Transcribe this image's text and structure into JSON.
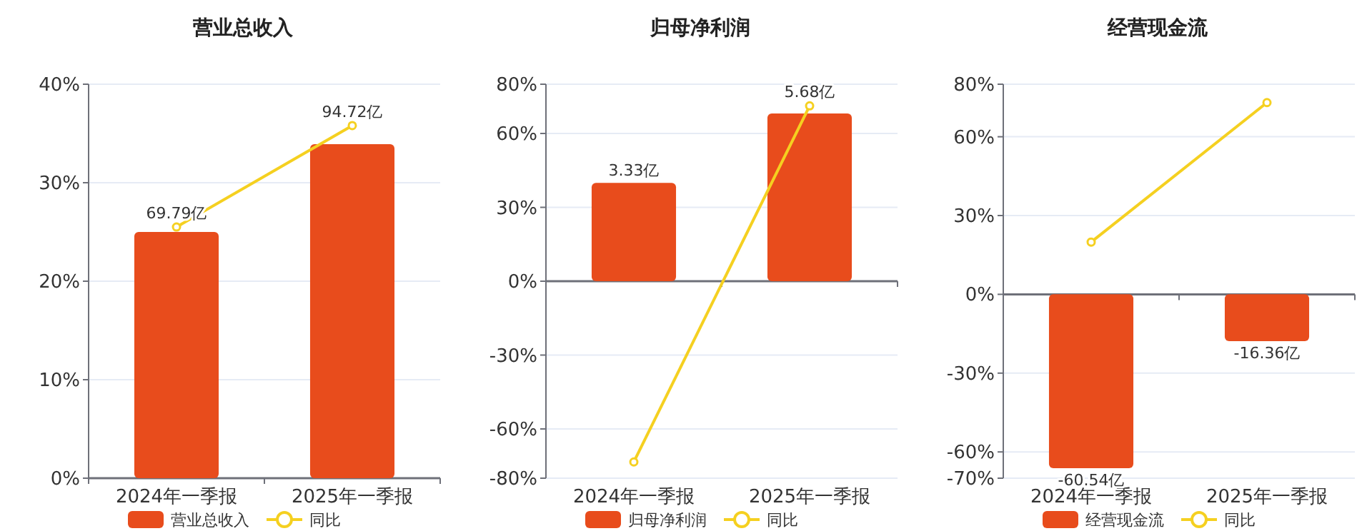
{
  "chart_data": [
    {
      "type": "bar",
      "title": "营业总收入",
      "categories": [
        "2024年一季报",
        "2025年一季报"
      ],
      "series": [
        {
          "name": "营业总收入",
          "axis": "y2",
          "color": "#e84c1c",
          "values": [
            69.79,
            94.72
          ],
          "value_labels": [
            "69.79亿",
            "94.72亿"
          ]
        },
        {
          "name": "同比",
          "type": "line",
          "color": "#f5d020",
          "values": [
            25.5,
            35.8
          ],
          "marker": "circle"
        }
      ],
      "ylim": [
        0,
        40
      ],
      "yticks": [
        {
          "value": 0,
          "label": "0%"
        },
        {
          "value": 10,
          "label": "10%"
        },
        {
          "value": 20,
          "label": "20%"
        },
        {
          "value": 30,
          "label": "30%"
        },
        {
          "value": 40,
          "label": "40%"
        }
      ],
      "y2lim": [
        0,
        111.7
      ],
      "grid": "y",
      "legend": "bottom"
    },
    {
      "type": "bar",
      "title": "归母净利润",
      "categories": [
        "2024年一季报",
        "2025年一季报"
      ],
      "series": [
        {
          "name": "归母净利润",
          "axis": "y2",
          "color": "#e84c1c",
          "values": [
            3.33,
            5.68
          ],
          "value_labels": [
            "3.33亿",
            "5.68亿"
          ]
        },
        {
          "name": "同比",
          "type": "line",
          "color": "#f5d020",
          "values": [
            -73.4,
            71.2
          ],
          "marker": "circle"
        }
      ],
      "ylim": [
        -80,
        80
      ],
      "yticks": [
        {
          "value": -80,
          "label": "-80%"
        },
        {
          "value": -60,
          "label": "-60%"
        },
        {
          "value": -30,
          "label": "-30%"
        },
        {
          "value": 0,
          "label": "0%"
        },
        {
          "value": 30,
          "label": "30%"
        },
        {
          "value": 60,
          "label": "60%"
        },
        {
          "value": 80,
          "label": "80%"
        }
      ],
      "y2lim": [
        -6.67,
        6.67
      ],
      "grid": "y",
      "legend": "bottom"
    },
    {
      "type": "bar",
      "title": "经营现金流",
      "categories": [
        "2024年一季报",
        "2025年一季报"
      ],
      "series": [
        {
          "name": "经营现金流",
          "axis": "y2",
          "color": "#e84c1c",
          "values": [
            -60.54,
            -16.36
          ],
          "value_labels": [
            "-60.54亿",
            "-16.36亿"
          ]
        },
        {
          "name": "同比",
          "type": "line",
          "color": "#f5d020",
          "values": [
            19.9,
            73.0
          ],
          "marker": "circle"
        }
      ],
      "ylim": [
        -70,
        80
      ],
      "yticks": [
        {
          "value": -70,
          "label": "-70%"
        },
        {
          "value": -60,
          "label": "-60%"
        },
        {
          "value": -30,
          "label": "-30%"
        },
        {
          "value": 0,
          "label": "0%"
        },
        {
          "value": 30,
          "label": "30%"
        },
        {
          "value": 60,
          "label": "60%"
        },
        {
          "value": 80,
          "label": "80%"
        }
      ],
      "y2lim": [
        -64,
        73
      ],
      "grid": "y",
      "legend": "bottom"
    }
  ]
}
